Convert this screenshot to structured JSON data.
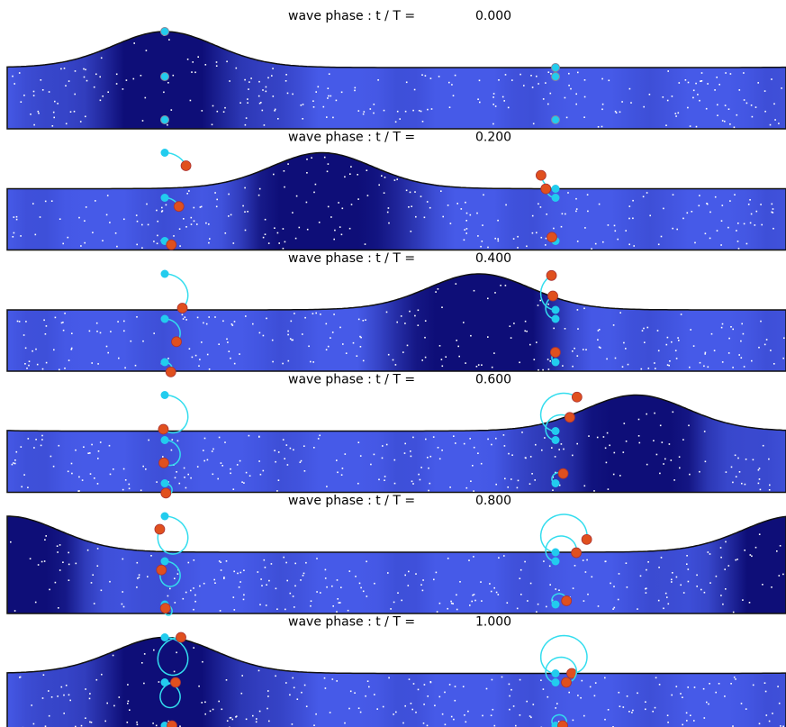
{
  "panels": [
    {
      "label": "wave phase : t / T =",
      "phase": "0.000"
    },
    {
      "label": "wave phase : t / T =",
      "phase": "0.200"
    },
    {
      "label": "wave phase : t / T =",
      "phase": "0.400"
    },
    {
      "label": "wave phase : t / T =",
      "phase": "0.600"
    },
    {
      "label": "wave phase : t / T =",
      "phase": "0.800"
    },
    {
      "label": "wave phase : t / T =",
      "phase": "1.000"
    }
  ]
}
